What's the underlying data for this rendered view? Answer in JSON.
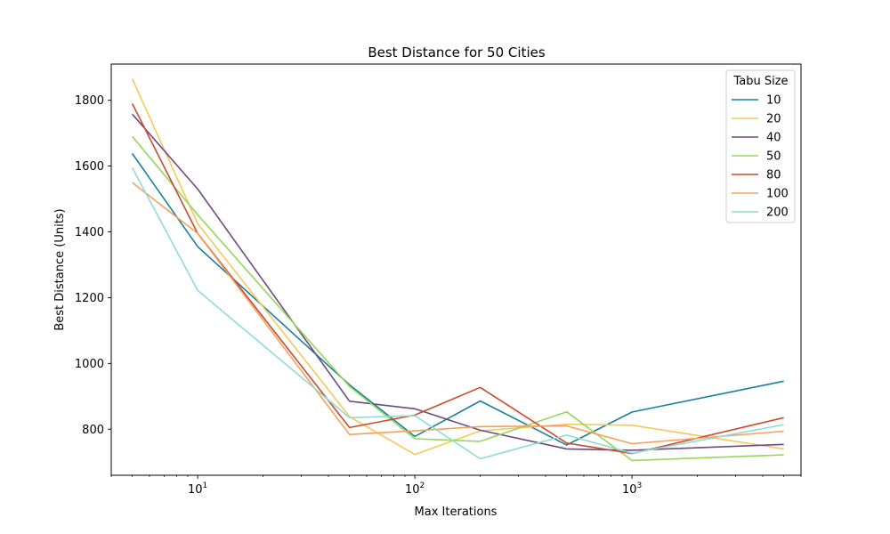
{
  "chart_data": {
    "type": "line",
    "title": "Best Distance for 50 Cities",
    "xlabel": "Max Iterations",
    "ylabel": "Best Distance (Units)",
    "x_scale": "log",
    "x": [
      5,
      10,
      50,
      100,
      200,
      500,
      1000,
      5000
    ],
    "xlim": [
      4,
      6000
    ],
    "ylim": [
      660,
      1910
    ],
    "x_ticks": [
      {
        "value": 10,
        "base": "10",
        "exp": "1"
      },
      {
        "value": 100,
        "base": "10",
        "exp": "2"
      },
      {
        "value": 1000,
        "base": "10",
        "exp": "3"
      }
    ],
    "y_ticks": [
      800,
      1000,
      1200,
      1400,
      1600,
      1800
    ],
    "grid": false,
    "legend": {
      "title": "Tabu Size",
      "placement": "upper right"
    },
    "series": [
      {
        "name": "10",
        "color": "#1a80a0",
        "values": [
          1638,
          1355,
          935,
          778,
          886,
          752,
          852,
          946
        ]
      },
      {
        "name": "20",
        "color": "#f5c85a",
        "values": [
          1865,
          1425,
          838,
          723,
          795,
          815,
          812,
          740
        ]
      },
      {
        "name": "40",
        "color": "#6e4a82",
        "values": [
          1758,
          1530,
          885,
          862,
          797,
          740,
          736,
          754
        ]
      },
      {
        "name": "50",
        "color": "#95d75a",
        "values": [
          1690,
          1452,
          930,
          771,
          763,
          853,
          705,
          722
        ]
      },
      {
        "name": "80",
        "color": "#cc4a2c",
        "values": [
          1790,
          1395,
          805,
          843,
          927,
          758,
          726,
          835
        ]
      },
      {
        "name": "100",
        "color": "#f5a05a",
        "values": [
          1550,
          1395,
          784,
          795,
          808,
          810,
          756,
          794
        ]
      },
      {
        "name": "200",
        "color": "#8edcd4",
        "values": [
          1595,
          1222,
          835,
          841,
          710,
          782,
          727,
          814
        ]
      }
    ]
  }
}
